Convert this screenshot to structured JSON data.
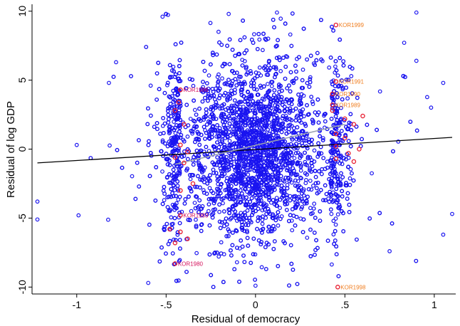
{
  "chart_data": {
    "type": "scatter",
    "title": "",
    "xlabel": "Residual of democracy",
    "ylabel": "Residual of log GDP",
    "xlim": [
      -1.25,
      1.12
    ],
    "ylim": [
      -10.5,
      10.5
    ],
    "x_ticks": [
      -1,
      -0.5,
      0,
      0.5,
      1
    ],
    "x_tick_labels": [
      "-1",
      "-.5",
      "0",
      ".5",
      "1"
    ],
    "y_ticks": [
      -10,
      -5,
      0,
      5,
      10
    ],
    "y_tick_labels": [
      "-10",
      "-5",
      "0",
      "5",
      "10"
    ],
    "grid": false,
    "legend": "none",
    "series": [
      {
        "role": "all_countries",
        "marker": "hollow-circle",
        "color": "#1a14f0",
        "point_count_estimate": 5000,
        "distribution": "dense elliptical cloud centered near (0.0, 0.0); democracy residual mostly between -0.6 and 0.6 with sparse points out to -1.22 and 1.10; GDP residual between -10 and 10, most dense between -3 and 3; vertical bands of points cluster at x ≈ -0.45 and x ≈ 0.45",
        "sample_points": [
          {
            "x": -1.22,
            "y": -3.8
          },
          {
            "x": -1.22,
            "y": -5.1
          },
          {
            "x": -1.0,
            "y": 0.3
          },
          {
            "x": -0.99,
            "y": -4.8
          },
          {
            "x": -0.82,
            "y": 4.8
          },
          {
            "x": -0.78,
            "y": 6.3
          },
          {
            "x": -0.52,
            "y": 9.6
          },
          {
            "x": -0.15,
            "y": 9.8
          },
          {
            "x": 0.12,
            "y": 9.9
          },
          {
            "x": 0.9,
            "y": 9.9
          },
          {
            "x": 0.9,
            "y": 6.4
          },
          {
            "x": 1.05,
            "y": 4.8
          },
          {
            "x": 1.1,
            "y": -4.7
          },
          {
            "x": 1.05,
            "y": -6.2
          },
          {
            "x": 0.75,
            "y": -7.4
          },
          {
            "x": 0.0,
            "y": -9.9
          },
          {
            "x": -0.45,
            "y": -8.3
          },
          {
            "x": -0.6,
            "y": -9.7
          }
        ]
      },
      {
        "role": "korea_highlighted",
        "name": "KOR",
        "marker": "hollow-circle",
        "color": "#e8192c",
        "label_color_left": "#d40f5a",
        "label_color_right": "#f07d1e",
        "labels": [
          {
            "x": 0.45,
            "y": 9.0,
            "text": "KOR1999"
          },
          {
            "x": 0.45,
            "y": 4.9,
            "text": "KOR1991"
          },
          {
            "x": 0.43,
            "y": 4.0,
            "text": "KOR1990"
          },
          {
            "x": 0.43,
            "y": 3.2,
            "text": "KOR1989"
          },
          {
            "x": 0.46,
            "y": -10.0,
            "text": "KOR1998"
          },
          {
            "x": -0.45,
            "y": -8.3,
            "text": "KOR1980"
          },
          {
            "x": -0.42,
            "y": -4.8,
            "text": "KOR1983"
          },
          {
            "x": -0.42,
            "y": 4.3,
            "text": "KOR1986"
          }
        ],
        "unlabeled_positions": [
          {
            "x": 0.43,
            "y": 2.8
          },
          {
            "x": 0.5,
            "y": 2.2
          },
          {
            "x": 0.55,
            "y": 1.8
          },
          {
            "x": 0.45,
            "y": 1.1
          },
          {
            "x": 0.5,
            "y": 0.8
          },
          {
            "x": 0.45,
            "y": 0.2
          },
          {
            "x": 0.52,
            "y": -0.3
          },
          {
            "x": 0.45,
            "y": -0.7
          },
          {
            "x": 0.55,
            "y": -0.9
          },
          {
            "x": 0.6,
            "y": 2.4
          },
          {
            "x": 0.58,
            "y": 0.0
          },
          {
            "x": -0.43,
            "y": 3.4
          },
          {
            "x": -0.45,
            "y": 2.8
          },
          {
            "x": -0.4,
            "y": 1.8
          },
          {
            "x": -0.42,
            "y": 0.3
          },
          {
            "x": -0.38,
            "y": -0.2
          },
          {
            "x": -0.45,
            "y": -0.6
          },
          {
            "x": -0.4,
            "y": -1.0
          },
          {
            "x": -0.35,
            "y": -2.5
          },
          {
            "x": -0.42,
            "y": -3.0
          },
          {
            "x": -0.48,
            "y": -5.8
          },
          {
            "x": -0.42,
            "y": -6.0
          },
          {
            "x": -0.45,
            "y": -6.8
          },
          {
            "x": -0.38,
            "y": -6.5
          }
        ]
      }
    ],
    "fit_lines": [
      {
        "role": "overall_fit",
        "color": "#000000",
        "x1": -1.22,
        "y1": -1.0,
        "x2": 1.1,
        "y2": 0.85
      },
      {
        "role": "korea_fit",
        "color": "#9aa2b0",
        "x1": -0.45,
        "y1": -1.1,
        "x2": 0.5,
        "y2": 1.8
      }
    ]
  }
}
